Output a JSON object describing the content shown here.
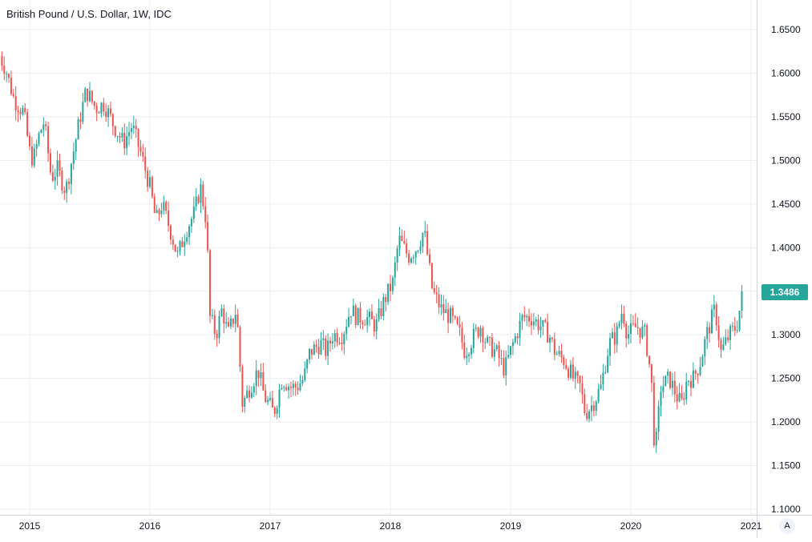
{
  "chart_data": {
    "type": "candlestick",
    "title": "British Pound / U.S. Dollar, 1W, IDC",
    "x_ticks": [
      "2015",
      "2016",
      "2017",
      "2018",
      "2019",
      "2020",
      "2021"
    ],
    "y_ticks": [
      "1.6500",
      "1.6000",
      "1.5500",
      "1.5000",
      "1.4500",
      "1.4000",
      "1.3500",
      "1.3000",
      "1.2500",
      "1.2000",
      "1.1500",
      "1.1000"
    ],
    "ylim": [
      1.1,
      1.65
    ],
    "xlim": [
      2014.75,
      2021.0
    ],
    "grid": true,
    "last_price": "1.3486",
    "path": [
      [
        2014.75,
        1.62
      ],
      [
        2014.8,
        1.605
      ],
      [
        2014.87,
        1.57
      ],
      [
        2014.95,
        1.555
      ],
      [
        2015.0,
        1.51
      ],
      [
        2015.03,
        1.5
      ],
      [
        2015.08,
        1.53
      ],
      [
        2015.12,
        1.545
      ],
      [
        2015.18,
        1.48
      ],
      [
        2015.23,
        1.49
      ],
      [
        2015.3,
        1.465
      ],
      [
        2015.35,
        1.5
      ],
      [
        2015.42,
        1.55
      ],
      [
        2015.47,
        1.58
      ],
      [
        2015.55,
        1.56
      ],
      [
        2015.62,
        1.565
      ],
      [
        2015.7,
        1.54
      ],
      [
        2015.78,
        1.52
      ],
      [
        2015.85,
        1.54
      ],
      [
        2015.92,
        1.51
      ],
      [
        2016.0,
        1.47
      ],
      [
        2016.05,
        1.43
      ],
      [
        2016.1,
        1.45
      ],
      [
        2016.17,
        1.42
      ],
      [
        2016.23,
        1.39
      ],
      [
        2016.3,
        1.42
      ],
      [
        2016.37,
        1.44
      ],
      [
        2016.42,
        1.47
      ],
      [
        2016.47,
        1.43
      ],
      [
        2016.5,
        1.32
      ],
      [
        2016.55,
        1.3
      ],
      [
        2016.6,
        1.33
      ],
      [
        2016.65,
        1.3
      ],
      [
        2016.72,
        1.33
      ],
      [
        2016.77,
        1.22
      ],
      [
        2016.83,
        1.24
      ],
      [
        2016.9,
        1.26
      ],
      [
        2016.95,
        1.23
      ],
      [
        2017.03,
        1.21
      ],
      [
        2017.1,
        1.25
      ],
      [
        2017.17,
        1.24
      ],
      [
        2017.22,
        1.24
      ],
      [
        2017.28,
        1.25
      ],
      [
        2017.33,
        1.28
      ],
      [
        2017.42,
        1.29
      ],
      [
        2017.47,
        1.28
      ],
      [
        2017.52,
        1.3
      ],
      [
        2017.6,
        1.3
      ],
      [
        2017.67,
        1.33
      ],
      [
        2017.72,
        1.32
      ],
      [
        2017.8,
        1.32
      ],
      [
        2017.88,
        1.31
      ],
      [
        2017.95,
        1.34
      ],
      [
        2018.02,
        1.36
      ],
      [
        2018.07,
        1.41
      ],
      [
        2018.15,
        1.39
      ],
      [
        2018.22,
        1.4
      ],
      [
        2018.28,
        1.42
      ],
      [
        2018.35,
        1.35
      ],
      [
        2018.42,
        1.33
      ],
      [
        2018.5,
        1.32
      ],
      [
        2018.58,
        1.3
      ],
      [
        2018.62,
        1.28
      ],
      [
        2018.7,
        1.3
      ],
      [
        2018.75,
        1.31
      ],
      [
        2018.8,
        1.29
      ],
      [
        2018.88,
        1.28
      ],
      [
        2018.95,
        1.26
      ],
      [
        2019.02,
        1.29
      ],
      [
        2019.1,
        1.32
      ],
      [
        2019.17,
        1.32
      ],
      [
        2019.25,
        1.31
      ],
      [
        2019.32,
        1.3
      ],
      [
        2019.37,
        1.28
      ],
      [
        2019.45,
        1.27
      ],
      [
        2019.52,
        1.25
      ],
      [
        2019.58,
        1.24
      ],
      [
        2019.62,
        1.21
      ],
      [
        2019.68,
        1.22
      ],
      [
        2019.75,
        1.24
      ],
      [
        2019.82,
        1.29
      ],
      [
        2019.88,
        1.3
      ],
      [
        2019.93,
        1.33
      ],
      [
        2019.97,
        1.3
      ],
      [
        2020.05,
        1.31
      ],
      [
        2020.12,
        1.3
      ],
      [
        2020.17,
        1.25
      ],
      [
        2020.2,
        1.16
      ],
      [
        2020.25,
        1.24
      ],
      [
        2020.32,
        1.25
      ],
      [
        2020.38,
        1.23
      ],
      [
        2020.42,
        1.22
      ],
      [
        2020.47,
        1.25
      ],
      [
        2020.52,
        1.25
      ],
      [
        2020.58,
        1.27
      ],
      [
        2020.63,
        1.3
      ],
      [
        2020.7,
        1.33
      ],
      [
        2020.75,
        1.28
      ],
      [
        2020.82,
        1.3
      ],
      [
        2020.88,
        1.31
      ],
      [
        2020.92,
        1.34
      ],
      [
        2020.93,
        1.3486
      ]
    ]
  },
  "colors": {
    "up": "#26a69a",
    "down": "#ef5350",
    "grid": "#e9eef2",
    "text": "#131722",
    "axis": "#9598a1",
    "price_badge": "#26a69a"
  },
  "auto_button": "A"
}
